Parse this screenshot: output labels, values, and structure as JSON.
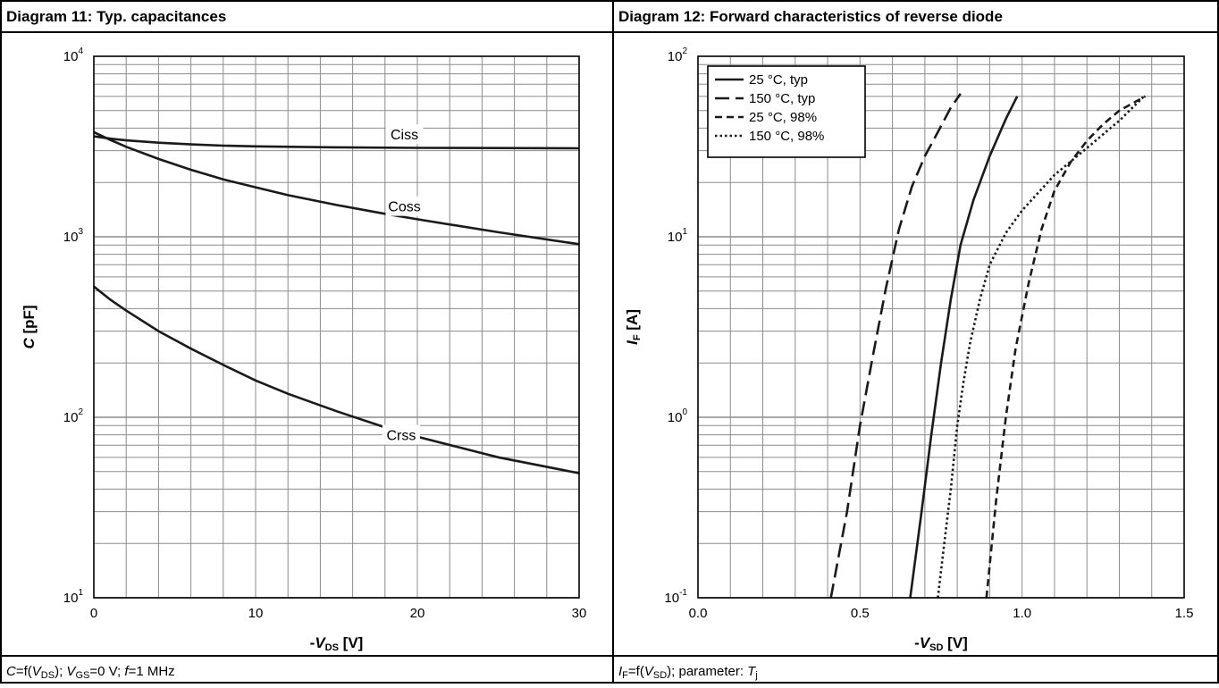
{
  "chart_data": [
    {
      "type": "line",
      "title": "Diagram 11: Typ. capacitances",
      "xlabel": {
        "sign": "-",
        "var": "V",
        "sub": "DS",
        "unit": " [V]"
      },
      "ylabel": {
        "var": "C",
        "unit": " [pF]"
      },
      "xlim": [
        0,
        30
      ],
      "ylim": [
        10,
        10000
      ],
      "yscale": "log",
      "xticks": [
        "0",
        "10",
        "20",
        "30"
      ],
      "yticks": [
        {
          "base": "10",
          "exp": "1"
        },
        {
          "base": "10",
          "exp": "2"
        },
        {
          "base": "10",
          "exp": "3"
        },
        {
          "base": "10",
          "exp": "4"
        }
      ],
      "grid": true,
      "series": [
        {
          "name": "Ciss",
          "x": [
            0,
            1,
            2,
            4,
            6,
            8,
            10,
            15,
            20,
            25,
            30
          ],
          "y": [
            3600,
            3500,
            3420,
            3320,
            3250,
            3200,
            3170,
            3130,
            3110,
            3100,
            3090
          ]
        },
        {
          "name": "Coss",
          "x": [
            0,
            1,
            2,
            4,
            6,
            8,
            10,
            12,
            15,
            18,
            20,
            25,
            30
          ],
          "y": [
            3800,
            3450,
            3150,
            2700,
            2350,
            2080,
            1880,
            1700,
            1500,
            1340,
            1250,
            1060,
            910
          ]
        },
        {
          "name": "Crss",
          "x": [
            0,
            1,
            2,
            4,
            6,
            8,
            10,
            12,
            15,
            18,
            20,
            25,
            30
          ],
          "y": [
            530,
            450,
            390,
            300,
            240,
            195,
            160,
            135,
            108,
            88,
            78,
            60,
            49
          ]
        }
      ],
      "footnote": "C=f(VDS); VGS=0 V; f=1 MHz"
    },
    {
      "type": "line",
      "title": "Diagram 12: Forward characteristics of reverse diode",
      "xlabel": {
        "sign": "-",
        "var": "V",
        "sub": "SD",
        "unit": " [V]"
      },
      "ylabel": {
        "var": "I",
        "sub": "F",
        "unit": " [A]"
      },
      "xlim": [
        0,
        1.5
      ],
      "ylim": [
        0.1,
        100
      ],
      "yscale": "log",
      "xticks": [
        "0.0",
        "0.5",
        "1.0",
        "1.5"
      ],
      "yticks": [
        {
          "base": "10",
          "exp": "-1"
        },
        {
          "base": "10",
          "exp": "0"
        },
        {
          "base": "10",
          "exp": "1"
        },
        {
          "base": "10",
          "exp": "2"
        }
      ],
      "grid": true,
      "legend": "top-left",
      "series": [
        {
          "name": "25 °C, typ",
          "style": "solid",
          "x": [
            0.655,
            0.69,
            0.72,
            0.75,
            0.78,
            0.81,
            0.85,
            0.9,
            0.95,
            0.985
          ],
          "y": [
            0.1,
            0.3,
            0.8,
            2,
            4.5,
            9,
            16,
            28,
            45,
            60
          ]
        },
        {
          "name": "150 °C, typ",
          "style": "longdash",
          "x": [
            0.41,
            0.46,
            0.5,
            0.54,
            0.58,
            0.62,
            0.66,
            0.7,
            0.74,
            0.78,
            0.81
          ],
          "y": [
            0.1,
            0.3,
            0.9,
            2.2,
            5.2,
            11,
            19,
            28,
            38,
            52,
            62
          ]
        },
        {
          "name": "25 °C, 98%",
          "style": "dash",
          "x": [
            0.89,
            0.92,
            0.95,
            0.98,
            1.02,
            1.06,
            1.1,
            1.15,
            1.2,
            1.25,
            1.3,
            1.38
          ],
          "y": [
            0.1,
            0.35,
            1,
            2.4,
            5.5,
            11,
            18,
            26,
            34,
            42,
            50,
            60
          ]
        },
        {
          "name": "150 °C, 98%",
          "style": "dot",
          "x": [
            0.74,
            0.76,
            0.78,
            0.8,
            0.82,
            0.84,
            0.87,
            0.9,
            0.95,
            1.0,
            1.1,
            1.2,
            1.3,
            1.38
          ],
          "y": [
            0.1,
            0.2,
            0.4,
            0.9,
            1.6,
            2.6,
            4.5,
            7,
            10.5,
            14,
            22,
            31,
            44,
            61
          ]
        }
      ],
      "footnote": "IF=f(VSD); parameter: Tj"
    }
  ]
}
